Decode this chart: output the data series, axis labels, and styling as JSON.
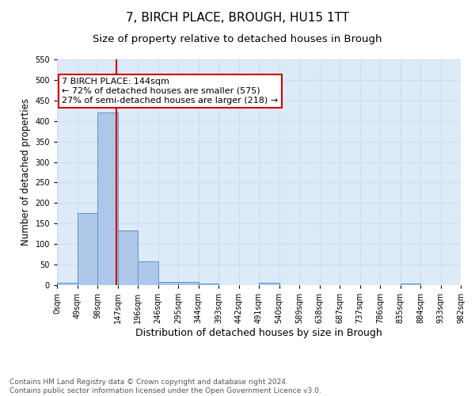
{
  "title": "7, BIRCH PLACE, BROUGH, HU15 1TT",
  "subtitle": "Size of property relative to detached houses in Brough",
  "xlabel": "Distribution of detached houses by size in Brough",
  "ylabel": "Number of detached properties",
  "bar_values": [
    5,
    175,
    420,
    133,
    58,
    8,
    8,
    3,
    0,
    0,
    5,
    0,
    0,
    0,
    0,
    0,
    0,
    3,
    0,
    0
  ],
  "bin_edges": [
    0,
    49,
    98,
    147,
    196,
    245,
    294,
    343,
    392,
    441,
    490,
    539,
    588,
    637,
    686,
    735,
    784,
    833,
    882,
    931,
    980
  ],
  "tick_labels": [
    "0sqm",
    "49sqm",
    "98sqm",
    "147sqm",
    "196sqm",
    "246sqm",
    "295sqm",
    "344sqm",
    "393sqm",
    "442sqm",
    "491sqm",
    "540sqm",
    "589sqm",
    "638sqm",
    "687sqm",
    "737sqm",
    "786sqm",
    "835sqm",
    "884sqm",
    "933sqm",
    "982sqm"
  ],
  "bar_color": "#aec6e8",
  "bar_edge_color": "#5599cc",
  "vline_x": 144,
  "vline_color": "#cc0000",
  "annotation_text": "7 BIRCH PLACE: 144sqm\n← 72% of detached houses are smaller (575)\n27% of semi-detached houses are larger (218) →",
  "annotation_box_color": "#ffffff",
  "annotation_box_edge": "#cc0000",
  "ylim": [
    0,
    550
  ],
  "yticks": [
    0,
    50,
    100,
    150,
    200,
    250,
    300,
    350,
    400,
    450,
    500,
    550
  ],
  "grid_color": "#ccddee",
  "background_color": "#ddeaf7",
  "footer_text": "Contains HM Land Registry data © Crown copyright and database right 2024.\nContains public sector information licensed under the Open Government Licence v3.0.",
  "title_fontsize": 11,
  "subtitle_fontsize": 9.5,
  "xlabel_fontsize": 9,
  "ylabel_fontsize": 8.5,
  "tick_fontsize": 7,
  "annotation_fontsize": 8,
  "footer_fontsize": 6.5
}
